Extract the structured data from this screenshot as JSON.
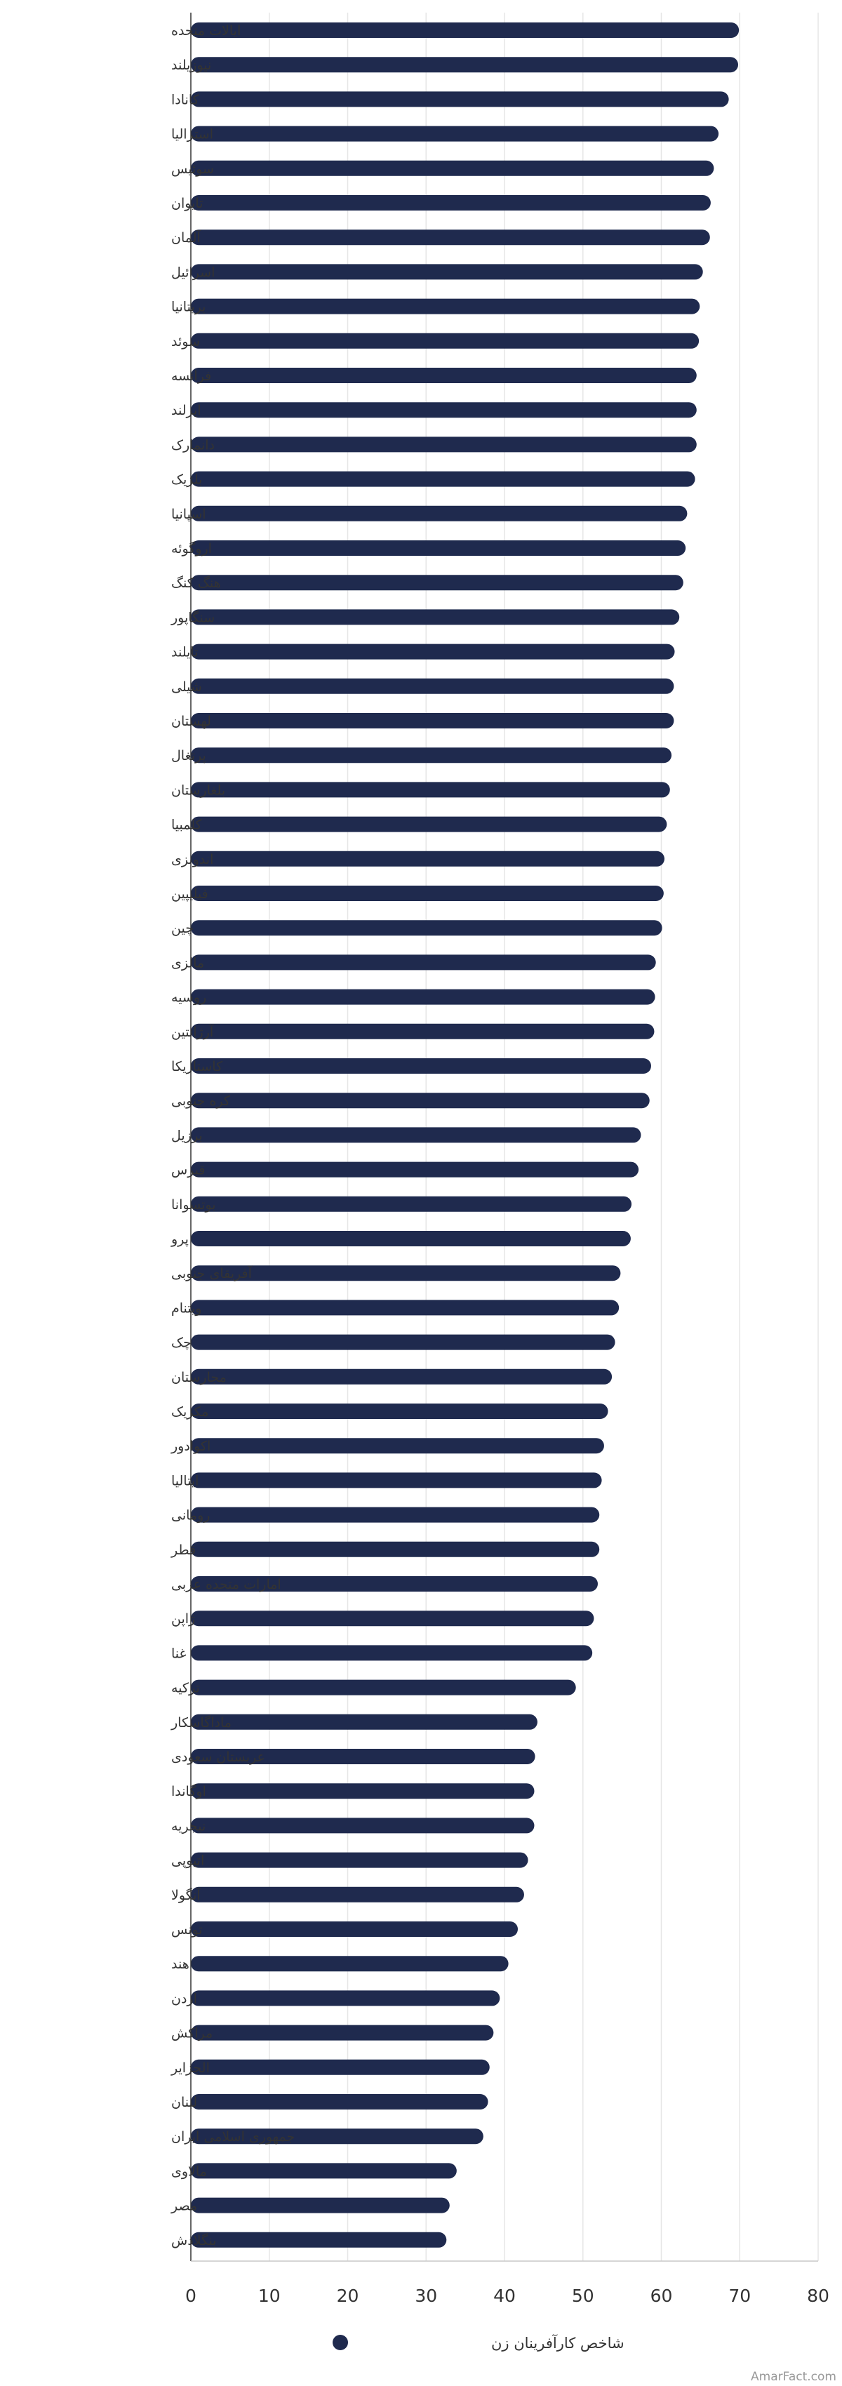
{
  "chart_data": {
    "type": "bar",
    "orientation": "horizontal",
    "categories": [
      "ایالات متحده",
      "نیوزیلند",
      "کانادا",
      "استرالیا",
      "سوئیس",
      "تایوان",
      "آلمان",
      "اسرائیل",
      "بریتانیا",
      "سوئد",
      "فرانسه",
      "ایرلند",
      "دانمارک",
      "بلژیک",
      "اسپانیا",
      "اروگوئه",
      "هنگ کنگ",
      "سنگاپور",
      "تایلند",
      "شیلی",
      "لهستان",
      "پرتغال",
      "بلغارستان",
      "کلمبیا",
      "اندونزی",
      "فیلیپین",
      "چین",
      "مالزی",
      "روسیه",
      "آرژانتین",
      "کاستاریکا",
      "کره جنوبی",
      "برزیل",
      "قبرس",
      "بوتسوانا",
      "پرو",
      "آفریقای جنوبی",
      "ویتنام",
      "چک",
      "مجارستان",
      "مکزیک",
      "اکوادور",
      "ایتالیا",
      "رومانی",
      "قطر",
      "امارات متحده عربی",
      "ژاپن",
      "غنا",
      "ترکیه",
      "ماداگاسکار",
      "عربستان سعودی",
      "اوگاندا",
      "نیجریه",
      "اتیوپی",
      "آنگولا",
      "تونس",
      "هند",
      "اردن",
      "مراکش",
      "الجزایر",
      "لبنان",
      "جمهوری اسلامی ایران",
      "مالاوی",
      "مصر",
      "بنگلادش"
    ],
    "series": [
      {
        "name": "شاخص کارآفرینان زن",
        "color": "#1f2a4e",
        "values": [
          69.9,
          69.8,
          68.6,
          67.3,
          66.7,
          66.3,
          66.2,
          65.3,
          64.9,
          64.8,
          64.5,
          64.5,
          64.5,
          64.3,
          63.3,
          63.1,
          62.8,
          62.3,
          61.7,
          61.6,
          61.6,
          61.3,
          61.1,
          60.7,
          60.4,
          60.3,
          60.1,
          59.3,
          59.2,
          59.1,
          58.7,
          58.5,
          57.4,
          57.1,
          56.2,
          56.1,
          54.8,
          54.6,
          54.1,
          53.7,
          53.2,
          52.7,
          52.4,
          52.1,
          52.1,
          51.9,
          51.4,
          51.2,
          49.1,
          44.2,
          43.9,
          43.8,
          43.8,
          43.0,
          42.5,
          41.7,
          40.5,
          39.4,
          38.6,
          38.1,
          37.9,
          37.3,
          33.9,
          33.0,
          32.6
        ]
      }
    ],
    "xlim": [
      0,
      80
    ],
    "xticks": [
      0,
      10,
      20,
      30,
      40,
      50,
      60,
      70,
      80
    ],
    "grid": true,
    "legend": "bottom-center",
    "watermark": "AmarFact.com"
  }
}
